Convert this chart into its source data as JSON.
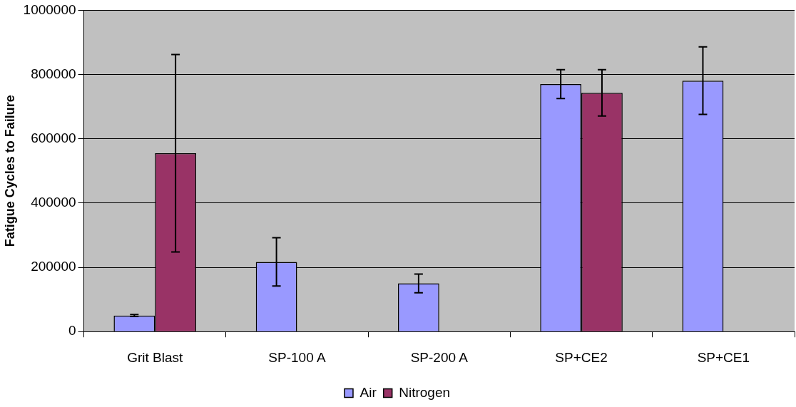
{
  "chart_data": {
    "type": "bar",
    "ylabel": "Fatigue Cycles to Failure",
    "categories": [
      "Grit Blast",
      "SP-100 A",
      "SP-200 A",
      "SP+CE2",
      "SP+CE1"
    ],
    "series": [
      {
        "name": "Air",
        "color": "#9999ff",
        "values": [
          50000,
          217000,
          150000,
          770000,
          781000
        ],
        "errors": [
          3000,
          75000,
          29000,
          45000,
          105000
        ]
      },
      {
        "name": "Nitrogen",
        "color": "#993366",
        "values": [
          555000,
          null,
          null,
          743000,
          null
        ],
        "errors": [
          307000,
          null,
          null,
          72000,
          null
        ]
      }
    ],
    "ylim": [
      0,
      1000000
    ],
    "yticks": [
      0,
      200000,
      400000,
      600000,
      800000,
      1000000
    ],
    "grid": "y",
    "legend": "bottom"
  }
}
